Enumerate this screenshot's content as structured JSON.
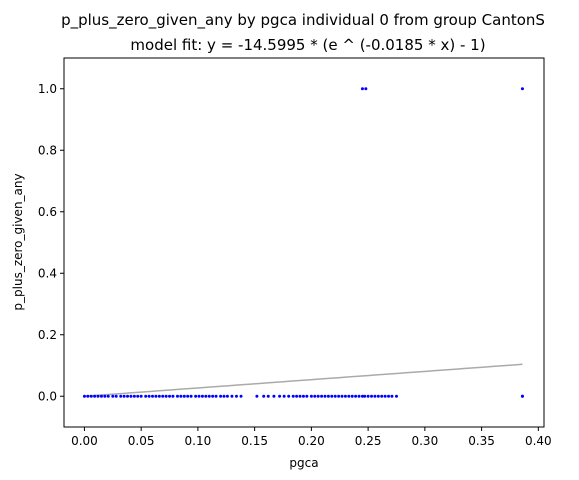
{
  "chart_data": {
    "type": "scatter",
    "title": "p_plus_zero_given_any by pgca individual 0 from group CantonS",
    "subtitle": "model fit: y = -14.5995 * (e ^ (-0.0185 * x) - 1)",
    "xlabel": "pgca",
    "ylabel": "p_plus_zero_given_any",
    "xlim": [
      -0.018,
      0.405
    ],
    "ylim": [
      -0.1,
      1.1
    ],
    "x_ticks": [
      0.0,
      0.05,
      0.1,
      0.15,
      0.2,
      0.25,
      0.3,
      0.35,
      0.4
    ],
    "x_tick_labels": [
      "0.00",
      "0.05",
      "0.10",
      "0.15",
      "0.20",
      "0.25",
      "0.30",
      "0.35",
      "0.40"
    ],
    "y_ticks": [
      0.0,
      0.2,
      0.4,
      0.6,
      0.8,
      1.0
    ],
    "y_tick_labels": [
      "0.0",
      "0.2",
      "0.4",
      "0.6",
      "0.8",
      "1.0"
    ],
    "grid": false,
    "points_color": "#0000ff",
    "fit_color": "#aaaaaa",
    "fit": {
      "a": -14.5995,
      "b": -0.0185,
      "x_range": [
        0.0,
        0.386
      ]
    },
    "points": {
      "x": [
        0.0,
        0.003,
        0.006,
        0.009,
        0.012,
        0.015,
        0.018,
        0.021,
        0.025,
        0.028,
        0.032,
        0.035,
        0.038,
        0.041,
        0.044,
        0.047,
        0.05,
        0.054,
        0.057,
        0.06,
        0.063,
        0.066,
        0.069,
        0.072,
        0.075,
        0.078,
        0.082,
        0.085,
        0.088,
        0.091,
        0.094,
        0.098,
        0.101,
        0.104,
        0.107,
        0.11,
        0.113,
        0.116,
        0.12,
        0.123,
        0.126,
        0.13,
        0.134,
        0.138,
        0.152,
        0.158,
        0.162,
        0.167,
        0.172,
        0.176,
        0.18,
        0.184,
        0.187,
        0.19,
        0.193,
        0.196,
        0.2,
        0.203,
        0.206,
        0.209,
        0.212,
        0.215,
        0.218,
        0.221,
        0.224,
        0.227,
        0.23,
        0.233,
        0.236,
        0.239,
        0.242,
        0.245,
        0.247,
        0.25,
        0.253,
        0.256,
        0.259,
        0.262,
        0.265,
        0.268,
        0.271,
        0.275,
        0.386,
        0.386,
        0.245,
        0.248,
        0.386
      ],
      "y": [
        0,
        0,
        0,
        0,
        0,
        0,
        0,
        0,
        0,
        0,
        0,
        0,
        0,
        0,
        0,
        0,
        0,
        0,
        0,
        0,
        0,
        0,
        0,
        0,
        0,
        0,
        0,
        0,
        0,
        0,
        0,
        0,
        0,
        0,
        0,
        0,
        0,
        0,
        0,
        0,
        0,
        0,
        0,
        0,
        0,
        0,
        0,
        0,
        0,
        0,
        0,
        0,
        0,
        0,
        0,
        0,
        0,
        0,
        0,
        0,
        0,
        0,
        0,
        0,
        0,
        0,
        0,
        0,
        0,
        0,
        0,
        0,
        0,
        0,
        0,
        0,
        0,
        0,
        0,
        0,
        0,
        0,
        0,
        0,
        1,
        1,
        1
      ]
    }
  }
}
